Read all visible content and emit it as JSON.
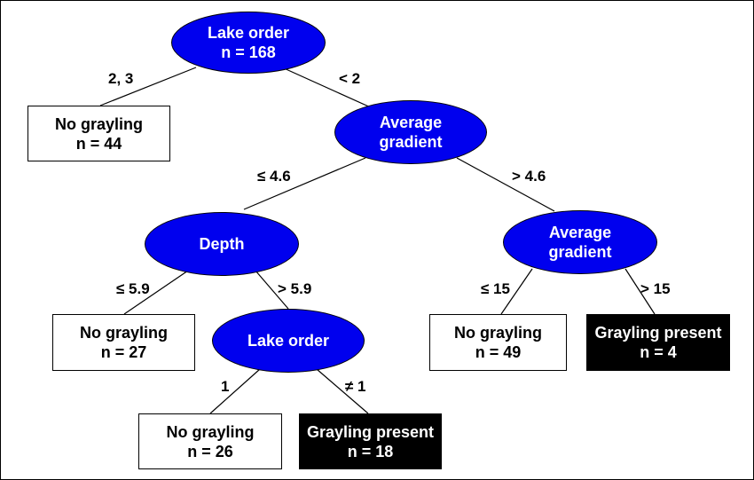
{
  "colors": {
    "split_node_fill": "#0000ee",
    "split_node_text": "#ffffff",
    "absent_leaf_fill": "#ffffff",
    "present_leaf_fill": "#000000"
  },
  "nodes": {
    "root": {
      "line1": "Lake order",
      "line2": "n = 168"
    },
    "gradient_1": {
      "line1": "Average",
      "line2": "gradient"
    },
    "depth": {
      "line1": "Depth"
    },
    "gradient_2": {
      "line1": "Average",
      "line2": "gradient"
    },
    "lake_order_2": {
      "line1": "Lake order"
    },
    "leaf_44": {
      "line1": "No grayling",
      "line2": "n = 44"
    },
    "leaf_27": {
      "line1": "No grayling",
      "line2": "n = 27"
    },
    "leaf_49": {
      "line1": "No grayling",
      "line2": "n = 49"
    },
    "leaf_4": {
      "line1": "Grayling present",
      "line2": "n = 4"
    },
    "leaf_26": {
      "line1": "No grayling",
      "line2": "n = 26"
    },
    "leaf_18": {
      "line1": "Grayling present",
      "line2": "n = 18"
    }
  },
  "edges": {
    "root_to_leaf44": "2, 3",
    "root_to_gradient1": "< 2",
    "gradient1_to_depth": "≤ 4.6",
    "gradient1_to_gradient2": "> 4.6",
    "depth_to_leaf27": "≤ 5.9",
    "depth_to_lakeorder2": "> 5.9",
    "gradient2_to_leaf49": "≤ 15",
    "gradient2_to_leaf4": "> 15",
    "lakeorder2_to_leaf26": "1",
    "lakeorder2_to_leaf18": "≠ 1"
  }
}
